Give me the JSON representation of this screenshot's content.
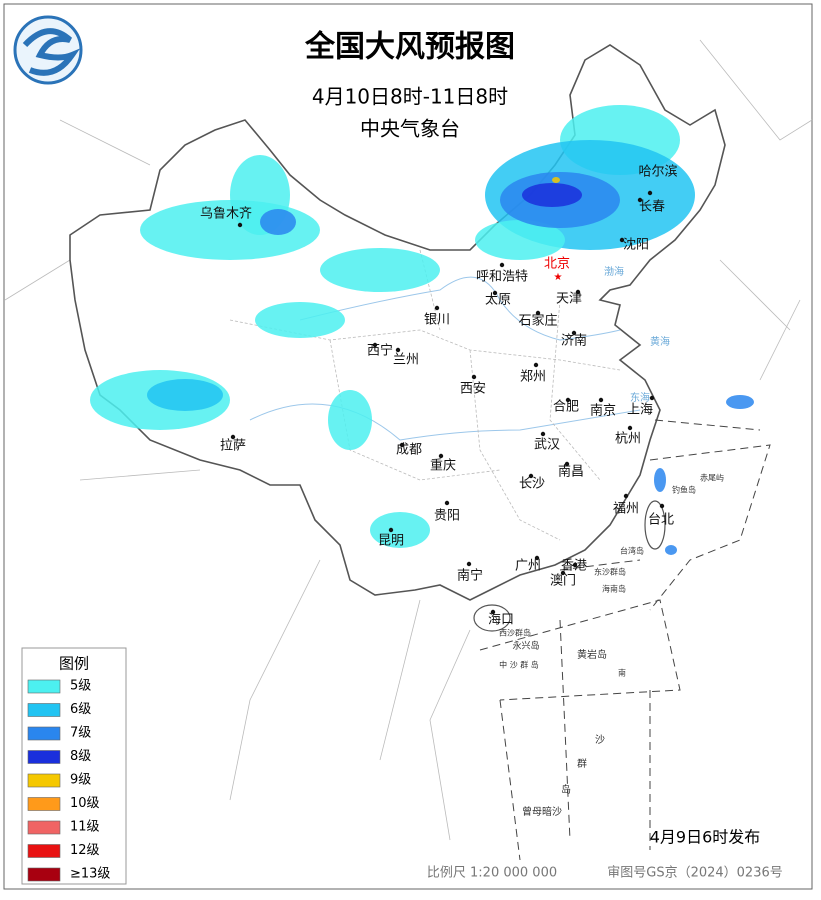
{
  "header": {
    "title": "全国大风预报图",
    "period": "4月10日8时-11日8时",
    "issuer": "中央气象台"
  },
  "capital": "北京",
  "cities": [
    "乌鲁木齐",
    "哈尔滨",
    "长春",
    "沈阳",
    "呼和浩特",
    "天津",
    "太原",
    "石家庄",
    "银川",
    "济南",
    "西宁",
    "兰州",
    "郑州",
    "西安",
    "合肥",
    "南京",
    "上海",
    "杭州",
    "武汉",
    "成都",
    "拉萨",
    "重庆",
    "南昌",
    "长沙",
    "福州",
    "台北",
    "贵阳",
    "昆明",
    "南宁",
    "广州",
    "香港",
    "澳门",
    "海口"
  ],
  "map_labels": [
    "渤海",
    "黄海",
    "东海",
    "钓鱼岛",
    "赤尾屿",
    "台湾岛",
    "东沙群岛",
    "海南岛",
    "西沙群岛",
    "永兴岛",
    "中 沙 群 岛",
    "黄岩岛",
    "南",
    "沙",
    "群",
    "岛",
    "曾母暗沙"
  ],
  "legend": {
    "title": "图例",
    "items": [
      {
        "label": "5级",
        "color": "#4cf0f0"
      },
      {
        "label": "6级",
        "color": "#22c4f2"
      },
      {
        "label": "7级",
        "color": "#2a86ee"
      },
      {
        "label": "8级",
        "color": "#1a2fdc"
      },
      {
        "label": "9级",
        "color": "#f5c800"
      },
      {
        "label": "10级",
        "color": "#ff9a1a"
      },
      {
        "label": "11级",
        "color": "#f06464"
      },
      {
        "label": "12级",
        "color": "#e81212"
      },
      {
        "label": "≥13级",
        "color": "#a80010"
      }
    ]
  },
  "footer": {
    "issued": "4月9日6时发布",
    "scale": "比例尺 1:20 000 000",
    "approval": "审图号GS京（2024）0236号"
  }
}
